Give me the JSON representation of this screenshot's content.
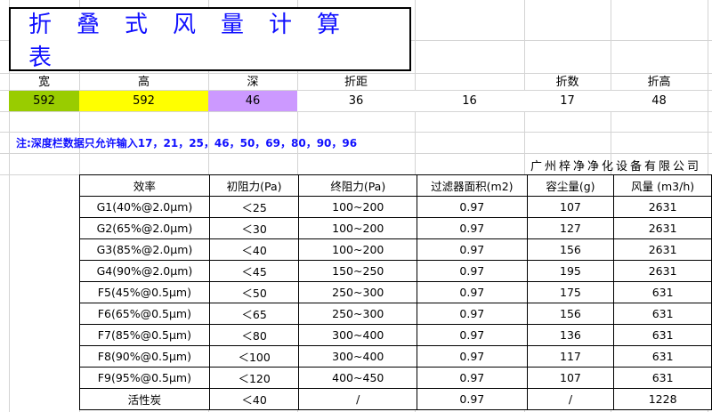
{
  "title": "折叠式风量计算表",
  "inputs": {
    "headers": [
      "宽",
      "高",
      "深",
      "折距",
      "",
      "折数",
      "折高"
    ],
    "values": [
      "592",
      "592",
      "46",
      "36",
      "16",
      "17",
      "48"
    ],
    "colors": [
      "#99cc00",
      "#ffff00",
      "#cc99ff",
      "#ffffff",
      "#ffffff",
      "#ffffff",
      "#ffffff"
    ]
  },
  "note": "注:深度栏数据只允许输入17，21，25，46，50，69，80，90，96",
  "company": "广州梓净净化设备有限公司",
  "table": {
    "headers": [
      "效率",
      "初阻力(Pa)",
      "终阻力(Pa)",
      "过滤器面积(m2)",
      "容尘量(g)",
      "风量 (m3/h)"
    ],
    "rows": [
      [
        "G1(40%@2.0μm)",
        "＜25",
        "100~200",
        "0.97",
        "107",
        "2631"
      ],
      [
        "G2(65%@2.0μm)",
        "＜30",
        "100~200",
        "0.97",
        "127",
        "2631"
      ],
      [
        "G3(85%@2.0μm)",
        "＜40",
        "100~200",
        "0.97",
        "156",
        "2631"
      ],
      [
        "G4(90%@2.0μm)",
        "＜45",
        "150~250",
        "0.97",
        "195",
        "2631"
      ],
      [
        "F5(45%@0.5μm)",
        "＜50",
        "250~300",
        "0.97",
        "175",
        "631"
      ],
      [
        "F6(65%@0.5μm)",
        "＜65",
        "250~300",
        "0.97",
        "156",
        "631"
      ],
      [
        "F7(85%@0.5μm)",
        "＜80",
        "300~400",
        "0.97",
        "136",
        "631"
      ],
      [
        "F8(90%@0.5μm)",
        "＜100",
        "300~400",
        "0.97",
        "117",
        "631"
      ],
      [
        "F9(95%@0.5μm)",
        "＜120",
        "400~450",
        "0.97",
        "107",
        "631"
      ],
      [
        "活性炭",
        "＜40",
        "/",
        "0.97",
        "/",
        "1228"
      ]
    ]
  }
}
